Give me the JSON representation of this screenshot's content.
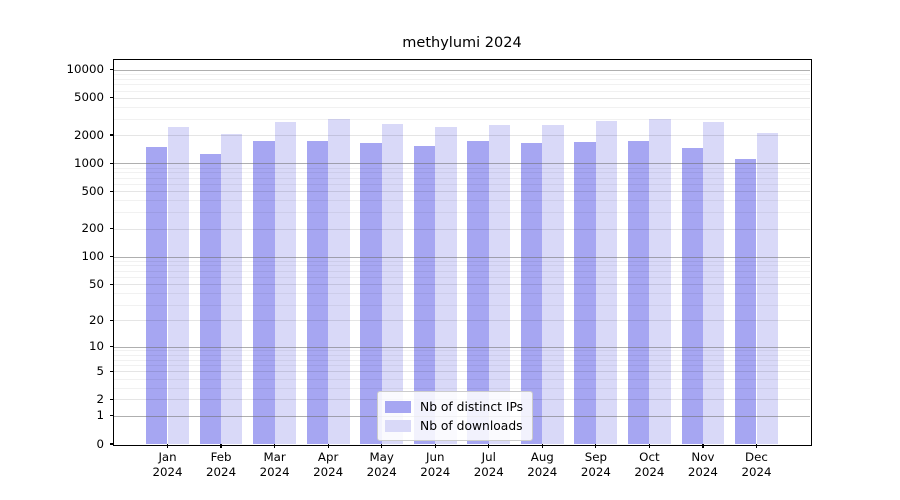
{
  "title": "methylumi 2024",
  "chart_data": {
    "type": "bar",
    "title": "methylumi 2024",
    "categories": [
      "Jan",
      "Feb",
      "Mar",
      "Apr",
      "May",
      "Jun",
      "Jul",
      "Aug",
      "Sep",
      "Oct",
      "Nov",
      "Dec"
    ],
    "year": "2024",
    "series": [
      {
        "name": "Nb of distinct IPs",
        "color": "#a6a6f2",
        "values": [
          1480,
          1250,
          1740,
          1750,
          1640,
          1540,
          1740,
          1630,
          1690,
          1740,
          1460,
          1110
        ]
      },
      {
        "name": "Nb of downloads",
        "color": "#d9d9f8",
        "values": [
          2450,
          2070,
          2760,
          2940,
          2620,
          2440,
          2580,
          2540,
          2800,
          2980,
          2770,
          2120
        ]
      }
    ],
    "xlabel": "",
    "ylabel": "",
    "yticks": [
      10000,
      5000,
      2000,
      1000,
      500,
      200,
      100,
      50,
      20,
      10,
      5,
      2,
      1,
      0
    ],
    "ylim": [
      0,
      12700
    ],
    "scale": "log10(v+1)",
    "grid": "both",
    "legend_position": "lower center"
  }
}
